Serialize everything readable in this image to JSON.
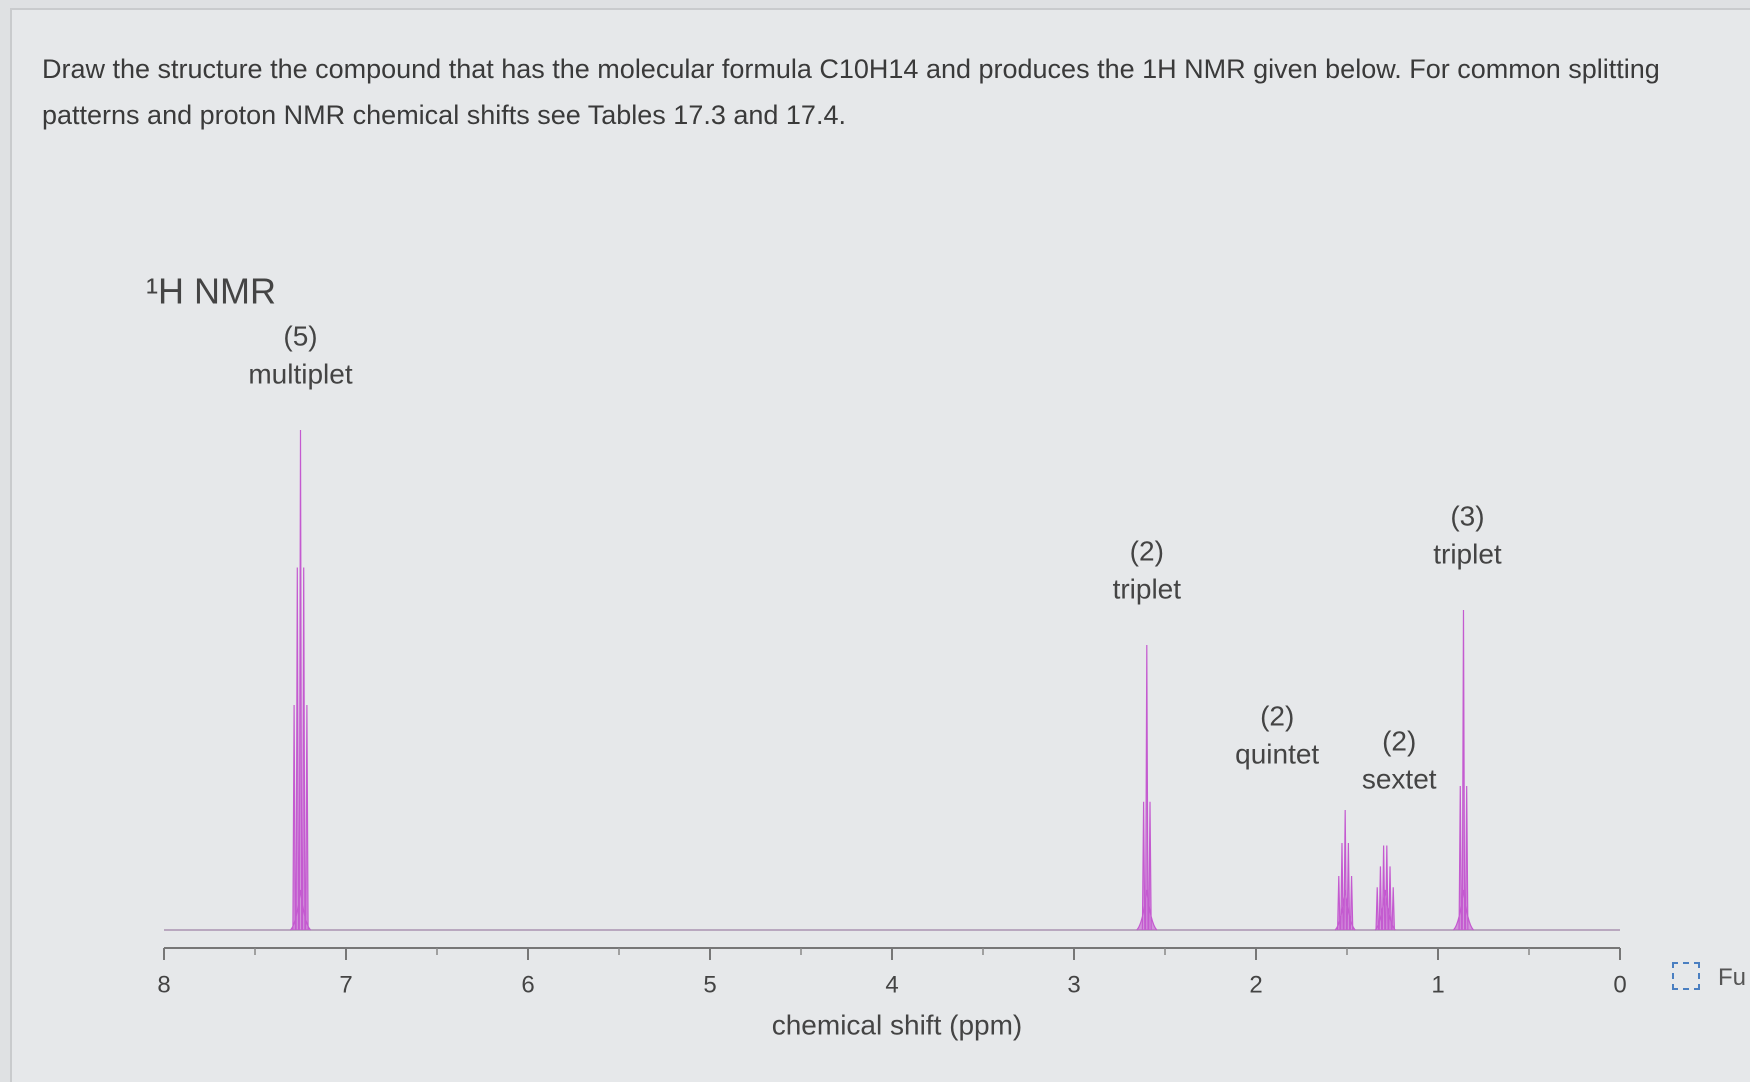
{
  "question": "Draw the structure the compound that has the molecular formula C10H14 and produces the 1H NMR given below. For common splitting patterns and proton NMR chemical shifts see Tables 17.3 and 17.4.",
  "fullscreen_label": "Fu",
  "chart_data": {
    "type": "spectrum",
    "title": "¹H NMR",
    "x_label": "chemical shift (ppm)",
    "x": [
      7.25,
      2.6,
      1.51,
      1.29,
      0.86
    ],
    "values": [
      100,
      57,
      24,
      19,
      64
    ],
    "integrations": [
      "(5)",
      "(2)",
      "(2)",
      "(2)",
      "(3)"
    ],
    "multiplicities": [
      "multiplet",
      "triplet",
      "quintet",
      "sextet",
      "triplet"
    ],
    "color": "#c45ad0",
    "xlim": [
      8,
      0
    ],
    "xticks": [
      8,
      7,
      6,
      5,
      4,
      3,
      2,
      1,
      0
    ],
    "ylim": [
      0,
      100
    ]
  }
}
